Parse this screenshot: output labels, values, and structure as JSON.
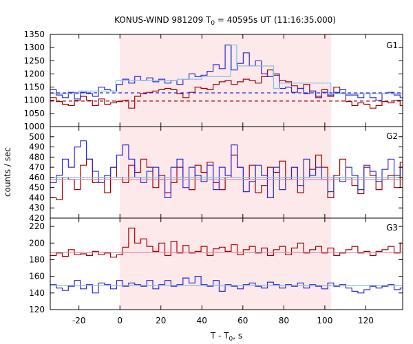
{
  "chart_data": {
    "type": "line",
    "title": "KONUS-WIND 981209 T",
    "title_sub": "0",
    "title_rest": " = 40595s UT (11:16:35.000)",
    "xlabel": "T - T",
    "xlabel_sub": "0",
    "xlabel_rest": ", s",
    "ylabel": "counts / sec",
    "xlim": [
      -34,
      138
    ],
    "xticks": [
      -20,
      0,
      20,
      40,
      60,
      80,
      100,
      120
    ],
    "highlight_interval": [
      0,
      103
    ],
    "highlight_color": "#fde8ea",
    "colors": {
      "dark_red": "#a50000",
      "blue": "#2b2bd6",
      "light_blue": "#7fc4e8",
      "pink": "#e58aa6"
    },
    "panels": [
      {
        "tag": "G1",
        "ylim": [
          1000,
          1350
        ],
        "yticks": [
          1000,
          1050,
          1100,
          1150,
          1200,
          1250,
          1300,
          1350
        ],
        "bin_width": 2.944,
        "series": [
          {
            "color": "#a50000",
            "x0": -34,
            "values": [
              1110,
              1095,
              1085,
              1080,
              1100,
              1115,
              1100,
              1080,
              1105,
              1085,
              1090,
              1095,
              1100,
              1070,
              1115,
              1125,
              1130,
              1135,
              1140,
              1145,
              1140,
              1125,
              1110,
              1130,
              1150,
              1145,
              1140,
              1160,
              1170,
              1175,
              1160,
              1170,
              1180,
              1175,
              1165,
              1190,
              1215,
              1195,
              1175,
              1170,
              1155,
              1145,
              1160,
              1135,
              1110,
              1140,
              1115,
              1150,
              1125,
              1095,
              1080,
              1090,
              1085,
              1070,
              1080,
              1095,
              1090,
              1100,
              1080,
              1075
            ]
          },
          {
            "color": "#2b2bd6",
            "x0": -34,
            "values": [
              1140,
              1120,
              1110,
              1130,
              1105,
              1130,
              1125,
              1115,
              1150,
              1140,
              1135,
              1160,
              1180,
              1165,
              1190,
              1175,
              1185,
              1170,
              1180,
              1165,
              1175,
              1160,
              1180,
              1200,
              1190,
              1195,
              1210,
              1235,
              1220,
              1310,
              1215,
              1240,
              1280,
              1230,
              1250,
              1200,
              1190,
              1200,
              1145,
              1150,
              1130,
              1145,
              1125,
              1135,
              1115,
              1130,
              1120,
              1130,
              1140,
              1120,
              1120,
              1110,
              1125,
              1110,
              1100,
              1125,
              1130,
              1120,
              1110,
              1115
            ]
          },
          {
            "color": "#7fc4e8",
            "step": true,
            "points": [
              [
                -34,
                1125
              ],
              [
                -20,
                1125
              ],
              [
                -20,
                1135
              ],
              [
                -2,
                1135
              ],
              [
                -2,
                1175
              ],
              [
                28,
                1175
              ],
              [
                28,
                1180
              ],
              [
                40,
                1180
              ],
              [
                40,
                1190
              ],
              [
                54,
                1190
              ],
              [
                54,
                1310
              ],
              [
                57,
                1310
              ],
              [
                57,
                1230
              ],
              [
                75,
                1230
              ],
              [
                75,
                1145
              ],
              [
                78,
                1145
              ],
              [
                78,
                1165
              ],
              [
                103,
                1165
              ],
              [
                103,
                1125
              ],
              [
                138,
                1125
              ]
            ]
          },
          {
            "color": "#2b2bd6",
            "dashed": true,
            "points": [
              [
                -34,
                1128
              ],
              [
                138,
                1128
              ]
            ]
          },
          {
            "color": "#a50000",
            "dashed": true,
            "points": [
              [
                -34,
                1097
              ],
              [
                138,
                1097
              ]
            ]
          }
        ]
      },
      {
        "tag": "G2",
        "ylim": [
          420,
          510
        ],
        "yticks": [
          420,
          430,
          440,
          450,
          460,
          470,
          480,
          490,
          500
        ],
        "bin_width": 2.944,
        "series": [
          {
            "color": "#a50000",
            "x0": -34,
            "values": [
              440,
              438,
              460,
              458,
              448,
              472,
              478,
              455,
              460,
              445,
              470,
              460,
              455,
              472,
              465,
              478,
              470,
              450,
              462,
              445,
              455,
              470,
              460,
              448,
              472,
              465,
              475,
              455,
              448,
              460,
              482,
              470,
              458,
              472,
              445,
              452,
              470,
              465,
              476,
              458,
              470,
              445,
              460,
              468,
              482,
              470,
              440,
              462,
              478,
              460,
              452,
              444,
              470,
              462,
              448,
              458,
              462,
              450,
              475,
              462
            ]
          },
          {
            "color": "#2b2bd6",
            "x0": -34,
            "values": [
              455,
              462,
              478,
              470,
              490,
              496,
              478,
              466,
              455,
              462,
              470,
              482,
              492,
              478,
              460,
              455,
              466,
              470,
              458,
              440,
              470,
              478,
              450,
              470,
              462,
              456,
              472,
              448,
              470,
              462,
              492,
              470,
              446,
              456,
              472,
              462,
              440,
              470,
              448,
              460,
              470,
              452,
              478,
              462,
              470,
              458,
              446,
              460,
              456,
              470,
              462,
              448,
              472,
              466,
              456,
              468,
              478,
              462,
              470,
              456
            ]
          },
          {
            "color": "#7fc4e8",
            "points": [
              [
                -34,
                460
              ],
              [
                138,
                460
              ]
            ]
          },
          {
            "color": "#e58aa6",
            "points": [
              [
                -34,
                458
              ],
              [
                138,
                458
              ]
            ]
          }
        ]
      },
      {
        "tag": "G3",
        "ylim": [
          120,
          230
        ],
        "yticks": [
          120,
          140,
          160,
          180,
          200,
          220
        ],
        "bin_width": 2.944,
        "series": [
          {
            "color": "#a50000",
            "x0": -34,
            "values": [
              185,
              188,
              184,
              192,
              186,
              187,
              185,
              190,
              186,
              188,
              183,
              186,
              195,
              218,
              200,
              205,
              196,
              190,
              200,
              185,
              202,
              188,
              197,
              188,
              190,
              196,
              185,
              193,
              195,
              190,
              198,
              186,
              192,
              196,
              188,
              194,
              185,
              192,
              196,
              186,
              194,
              200,
              188,
              192,
              196,
              188,
              194,
              185,
              188,
              192,
              196,
              188,
              190,
              185,
              190,
              192,
              196,
              188,
              200,
              210
            ]
          },
          {
            "color": "#2b2bd6",
            "x0": -34,
            "values": [
              150,
              146,
              143,
              148,
              155,
              145,
              150,
              140,
              152,
              150,
              145,
              155,
              148,
              152,
              150,
              148,
              155,
              145,
              150,
              155,
              148,
              150,
              158,
              152,
              160,
              150,
              148,
              155,
              142,
              150,
              148,
              145,
              150,
              152,
              148,
              146,
              153,
              150,
              146,
              150,
              148,
              152,
              146,
              150,
              148,
              145,
              152,
              148,
              150,
              146,
              142,
              140,
              144,
              148,
              146,
              148,
              150,
              144,
              146,
              148
            ]
          },
          {
            "color": "#7fc4e8",
            "points": [
              [
                -34,
                149
              ],
              [
                138,
                149
              ]
            ]
          },
          {
            "color": "#e58aa6",
            "points": [
              [
                -34,
                189
              ],
              [
                138,
                189
              ]
            ]
          }
        ]
      }
    ]
  }
}
